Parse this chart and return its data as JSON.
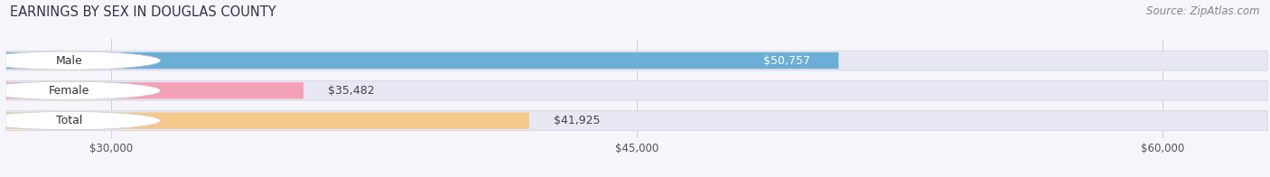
{
  "title": "EARNINGS BY SEX IN DOUGLAS COUNTY",
  "source": "Source: ZipAtlas.com",
  "categories": [
    "Male",
    "Female",
    "Total"
  ],
  "values": [
    50757,
    35482,
    41925
  ],
  "labels": [
    "$50,757",
    "$35,482",
    "$41,925"
  ],
  "bar_colors": [
    "#6baed6",
    "#f4a0b5",
    "#f5c88a"
  ],
  "track_color": "#e8e8f4",
  "xmin": 27000,
  "xmax": 63000,
  "xticks": [
    30000,
    45000,
    60000
  ],
  "xticklabels": [
    "$30,000",
    "$45,000",
    "$60,000"
  ],
  "background_color": "#f5f5fa",
  "title_fontsize": 10.5,
  "source_fontsize": 8.5,
  "label_fontsize": 9,
  "category_fontsize": 9,
  "male_label_inside": true,
  "male_label_color": "white",
  "other_label_color": "#444444"
}
